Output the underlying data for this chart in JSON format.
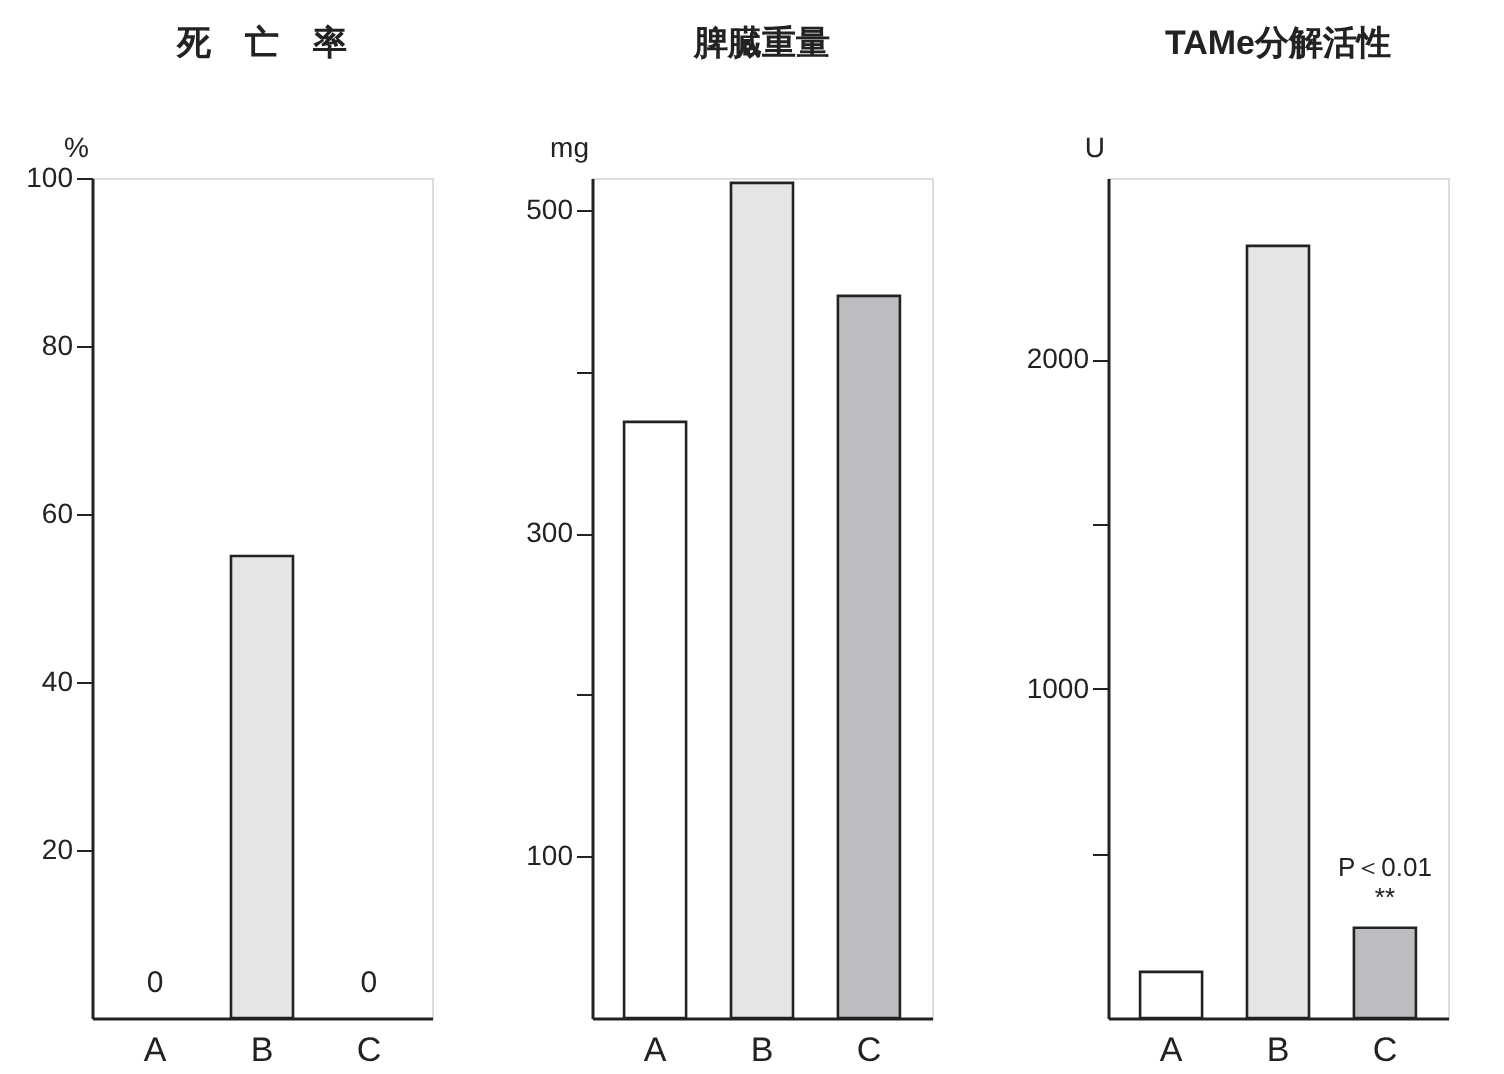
{
  "chart_data": [
    {
      "type": "bar",
      "title": "死　亡　率",
      "ylabel": "%",
      "categories": [
        "A",
        "B",
        "C"
      ],
      "values": [
        0,
        55,
        0
      ],
      "colors": [
        "#ffffff",
        "#e4e5e7",
        "#bcbdc0"
      ],
      "value_labels": [
        "0",
        null,
        "0"
      ],
      "ylim": [
        0,
        100
      ],
      "yticks": [
        20,
        40,
        60,
        80,
        100
      ],
      "grid": false
    },
    {
      "type": "bar",
      "title": "脾臓重量",
      "ylabel": "mg",
      "categories": [
        "A",
        "B",
        "C"
      ],
      "values": [
        369,
        517,
        447
      ],
      "colors": [
        "#ffffff",
        "#e4e5e7",
        "#bcbdc0"
      ],
      "ylim": [
        0,
        520
      ],
      "yticks": [
        100,
        {
          "value": 200,
          "label": null
        },
        300,
        {
          "value": 400,
          "label": null
        },
        500
      ],
      "grid": false
    },
    {
      "type": "bar",
      "title": "TAMe分解活性",
      "ylabel": "U",
      "categories": [
        "A",
        "B",
        "C"
      ],
      "values": [
        140,
        2344,
        274
      ],
      "colors": [
        "#ffffff",
        "#e4e5e7",
        "#bcbdc0"
      ],
      "ylim": [
        0,
        2550
      ],
      "yticks": [
        {
          "value": 500,
          "label": null
        },
        1000,
        {
          "value": 1500,
          "label": null
        },
        2000
      ],
      "grid": false,
      "annotations": [
        {
          "text": "P＜0.01",
          "x": "C",
          "y": 274
        },
        {
          "text": "**",
          "x": "C",
          "y": 274
        }
      ]
    }
  ]
}
